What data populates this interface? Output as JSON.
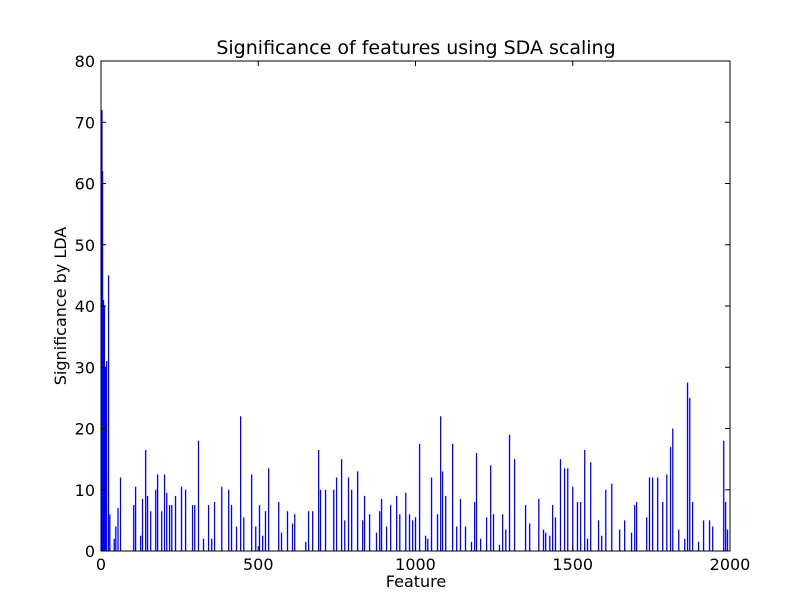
{
  "chart_data": {
    "type": "bar",
    "title": "Significance of features using SDA scaling",
    "xlabel": "Feature",
    "ylabel": "Significance by LDA",
    "color": "#0000ff",
    "x": [
      1,
      3,
      6,
      9,
      12,
      16,
      22,
      26,
      40,
      45,
      52,
      60,
      102,
      108,
      124,
      130,
      140,
      146,
      156,
      172,
      178,
      191,
      200,
      207,
      216,
      223,
      235,
      254,
      267,
      289,
      296,
      308,
      324,
      340,
      350,
      359,
      382,
      404,
      413,
      429,
      442,
      452,
      477,
      490,
      502,
      512,
      521,
      531,
      563,
      572,
      591,
      607,
      614,
      649,
      658,
      671,
      690,
      696,
      712,
      738,
      747,
      763,
      773,
      785,
      795,
      814,
      830,
      836,
      852,
      874,
      884,
      890,
      906,
      919,
      938,
      948,
      967,
      979,
      989,
      998,
      1011,
      1030,
      1037,
      1049,
      1068,
      1078,
      1084,
      1094,
      1116,
      1129,
      1141,
      1157,
      1176,
      1186,
      1192,
      1205,
      1224,
      1237,
      1246,
      1265,
      1275,
      1285,
      1297,
      1313,
      1348,
      1361,
      1390,
      1405,
      1412,
      1425,
      1434,
      1443,
      1459,
      1472,
      1482,
      1498,
      1513,
      1523,
      1536,
      1545,
      1555,
      1580,
      1590,
      1603,
      1622,
      1647,
      1663,
      1685,
      1695,
      1701,
      1733,
      1742,
      1752,
      1768,
      1784,
      1797,
      1809,
      1816,
      1835,
      1854,
      1863,
      1870,
      1879,
      1898,
      1914,
      1933,
      1943,
      1978,
      1984,
      1990
    ],
    "values": [
      72,
      62,
      41,
      40,
      30,
      31,
      45,
      6,
      2,
      4,
      7,
      12,
      7.5,
      10.5,
      2.5,
      8.5,
      16.5,
      9,
      6.5,
      10,
      12.5,
      6.5,
      12.5,
      9.5,
      7.5,
      7.5,
      9,
      10.5,
      10,
      7.5,
      7.5,
      18,
      2,
      7.5,
      2,
      8,
      10.5,
      10,
      7.5,
      4,
      22,
      5.5,
      12.5,
      4,
      7.5,
      2.5,
      6.5,
      13.5,
      8,
      3,
      6.5,
      4.5,
      6,
      1.5,
      6.5,
      6.5,
      16.5,
      10,
      10,
      10,
      12,
      15,
      5,
      12,
      10,
      13,
      5,
      9,
      6,
      3,
      6.5,
      8.5,
      4,
      7.5,
      9,
      6,
      9.5,
      6,
      5,
      5.5,
      17.5,
      2.5,
      2,
      12,
      6,
      22,
      13,
      9,
      17.5,
      4,
      8.5,
      4,
      1.5,
      8,
      16,
      2,
      5.5,
      14,
      6,
      1,
      6,
      3.5,
      19,
      15,
      7.5,
      4.5,
      8.5,
      3.5,
      3,
      2.5,
      7.5,
      5.5,
      15,
      13.5,
      13.5,
      10.5,
      8,
      8,
      16.5,
      2,
      14.5,
      5,
      2.5,
      10,
      11,
      3.5,
      5,
      3,
      7.5,
      8,
      5.5,
      12,
      12,
      12,
      8,
      12.5,
      17,
      20,
      3.5,
      2,
      27.5,
      25,
      8,
      1.5,
      5,
      5,
      4,
      18,
      8,
      3.5
    ],
    "xlim": [
      0,
      2000
    ],
    "xticks": [
      0,
      500,
      1000,
      1500,
      2000
    ],
    "ylim": [
      0,
      80
    ],
    "yticks": [
      0,
      10,
      20,
      30,
      40,
      50,
      60,
      70,
      80
    ]
  }
}
